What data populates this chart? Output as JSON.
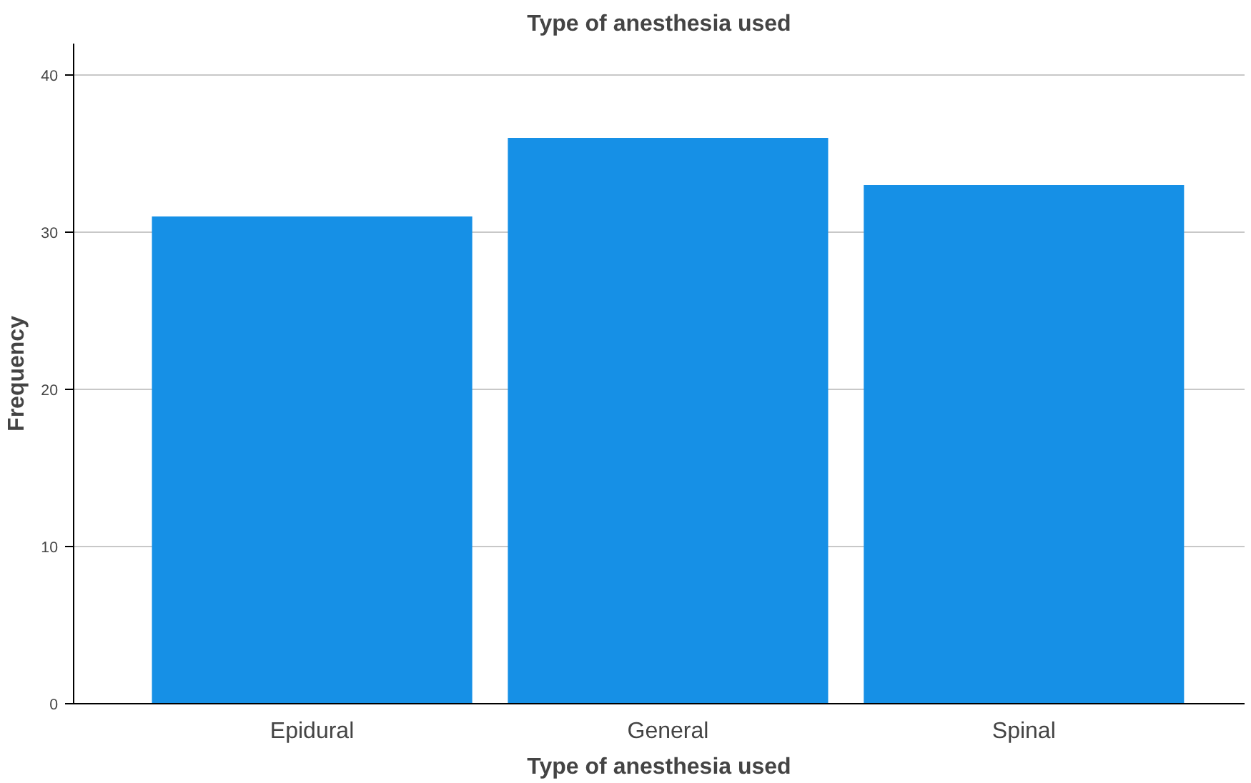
{
  "chart_data": {
    "type": "bar",
    "title": "Type of anesthesia used",
    "xlabel": "Type of anesthesia used",
    "ylabel": "Frequency",
    "categories": [
      "Epidural",
      "General",
      "Spinal"
    ],
    "values": [
      31,
      36,
      33
    ],
    "color": "#1690e6",
    "ylim": [
      0,
      42
    ],
    "yticks": [
      0,
      10,
      20,
      30,
      40
    ],
    "grid": "y"
  }
}
